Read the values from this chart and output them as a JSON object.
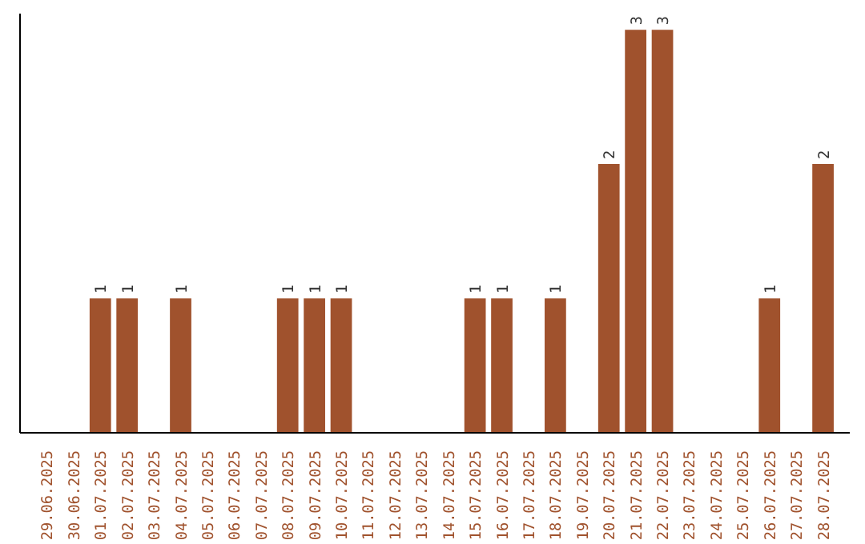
{
  "chart_data": {
    "type": "bar",
    "categories": [
      "29.06.2025",
      "30.06.2025",
      "01.07.2025",
      "02.07.2025",
      "03.07.2025",
      "04.07.2025",
      "05.07.2025",
      "06.07.2025",
      "07.07.2025",
      "08.07.2025",
      "09.07.2025",
      "10.07.2025",
      "11.07.2025",
      "12.07.2025",
      "13.07.2025",
      "14.07.2025",
      "15.07.2025",
      "16.07.2025",
      "17.07.2025",
      "18.07.2025",
      "19.07.2025",
      "20.07.2025",
      "21.07.2025",
      "22.07.2025",
      "23.07.2025",
      "24.07.2025",
      "25.07.2025",
      "26.07.2025",
      "27.07.2025",
      "28.07.2025"
    ],
    "values": [
      0,
      0,
      1,
      1,
      0,
      1,
      0,
      0,
      0,
      1,
      1,
      1,
      0,
      0,
      0,
      0,
      1,
      1,
      0,
      1,
      0,
      2,
      3,
      3,
      0,
      0,
      0,
      1,
      0,
      2
    ],
    "value_labels": [
      null,
      null,
      "1",
      "1",
      null,
      "1",
      null,
      null,
      null,
      "1",
      "1",
      "1",
      null,
      null,
      null,
      null,
      "1",
      "1",
      null,
      "1",
      null,
      "2",
      "3",
      "3",
      null,
      null,
      null,
      "1",
      null,
      "2"
    ],
    "color": "#a0522d",
    "tick_labels": "x",
    "grid": false
  }
}
